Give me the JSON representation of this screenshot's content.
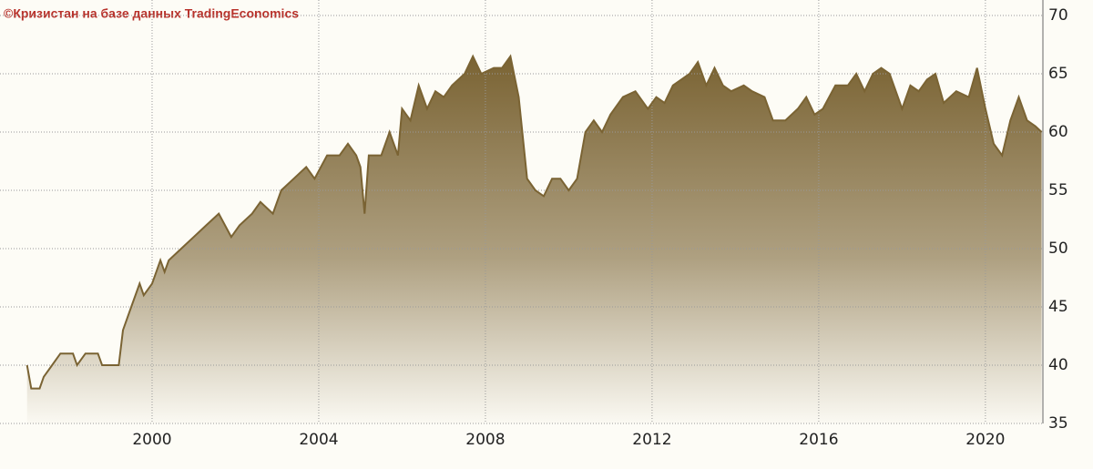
{
  "chart_data": {
    "type": "area",
    "title": "©Кризистан на базе данных TradingEconomics",
    "x": [
      1997.0,
      1997.1,
      1997.3,
      1997.4,
      1997.6,
      1997.8,
      1998.1,
      1998.2,
      1998.4,
      1998.7,
      1998.8,
      1999.2,
      1999.3,
      1999.5,
      1999.7,
      1999.8,
      2000.0,
      2000.2,
      2000.3,
      2000.4,
      2000.7,
      2001.0,
      2001.3,
      2001.6,
      2001.9,
      2002.1,
      2002.4,
      2002.6,
      2002.9,
      2003.1,
      2003.4,
      2003.7,
      2003.9,
      2004.2,
      2004.5,
      2004.7,
      2004.9,
      2005.0,
      2005.1,
      2005.2,
      2005.5,
      2005.7,
      2005.9,
      2006.0,
      2006.2,
      2006.4,
      2006.6,
      2006.8,
      2007.0,
      2007.2,
      2007.5,
      2007.7,
      2007.9,
      2008.2,
      2008.4,
      2008.6,
      2008.8,
      2009.0,
      2009.2,
      2009.4,
      2009.6,
      2009.8,
      2010.0,
      2010.2,
      2010.4,
      2010.6,
      2010.8,
      2011.0,
      2011.3,
      2011.6,
      2011.9,
      2012.1,
      2012.3,
      2012.5,
      2012.7,
      2012.9,
      2013.1,
      2013.3,
      2013.5,
      2013.7,
      2013.9,
      2014.2,
      2014.4,
      2014.7,
      2014.9,
      2015.2,
      2015.5,
      2015.7,
      2015.9,
      2016.1,
      2016.4,
      2016.7,
      2016.9,
      2017.1,
      2017.3,
      2017.5,
      2017.7,
      2018.0,
      2018.2,
      2018.4,
      2018.6,
      2018.8,
      2019.0,
      2019.3,
      2019.6,
      2019.8,
      2020.0,
      2020.2,
      2020.4,
      2020.6,
      2020.8,
      2021.0,
      2021.2,
      2021.35
    ],
    "values": [
      40,
      38,
      38,
      39,
      40,
      41,
      41,
      40,
      41,
      41,
      40,
      40,
      43,
      45,
      47,
      46,
      47,
      49,
      48,
      49,
      50,
      51,
      52,
      53,
      51,
      52,
      53,
      54,
      53,
      55,
      56,
      57,
      56,
      58,
      58,
      59,
      58,
      57,
      53,
      58,
      58,
      60,
      58,
      62,
      61,
      64,
      62,
      63.5,
      63,
      64,
      65,
      66.5,
      65,
      65.5,
      65.5,
      66.5,
      63,
      56,
      55,
      54.5,
      56,
      56,
      55,
      56,
      60,
      61,
      60,
      61.5,
      63,
      63.5,
      62,
      63,
      62.5,
      64,
      64.5,
      65,
      66,
      64,
      65.5,
      64,
      63.5,
      64,
      63.5,
      63,
      61,
      61,
      62,
      63,
      61.5,
      62,
      64,
      64,
      65,
      63.5,
      65,
      65.5,
      65,
      62,
      64,
      63.5,
      64.5,
      65,
      62.5,
      63.5,
      63,
      65.5,
      62,
      59,
      58,
      61,
      63,
      61,
      60.5,
      60
    ],
    "color": "#7a6333",
    "xlim": [
      1996.94,
      2021.38
    ],
    "xticks": [
      2000,
      2004,
      2008,
      2012,
      2016,
      2020
    ],
    "ylim": [
      35,
      70
    ],
    "yticks": [
      35,
      40,
      45,
      50,
      55,
      60,
      65,
      70
    ],
    "grid": true
  }
}
